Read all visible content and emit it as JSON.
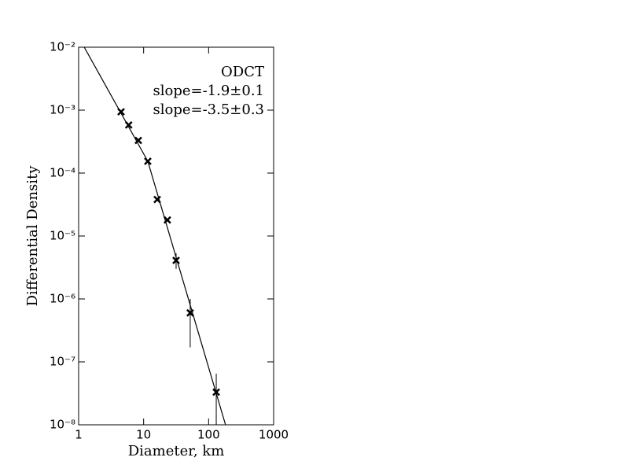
{
  "chart_data": {
    "type": "scatter",
    "xlabel": "Diameter, km",
    "ylabel": "Differential Density",
    "xscale": "log",
    "yscale": "log",
    "xlim": [
      1,
      1000
    ],
    "ylim": [
      1e-08,
      0.01
    ],
    "xticks": [
      1,
      10,
      100,
      1000
    ],
    "yticks": [
      {
        "value": 1e-08,
        "label": "10⁻⁸"
      },
      {
        "value": 1e-07,
        "label": "10⁻⁷"
      },
      {
        "value": 1e-06,
        "label": "10⁻⁶"
      },
      {
        "value": 1e-05,
        "label": "10⁻⁵"
      },
      {
        "value": 0.0001,
        "label": "10⁻⁴"
      },
      {
        "value": 0.001,
        "label": "10⁻³"
      },
      {
        "value": 0.01,
        "label": "10⁻²"
      }
    ],
    "series": [
      {
        "name": "ODCT",
        "kind": "points",
        "color": "#000000",
        "x": [
          4.5,
          5.9,
          8.3,
          11.6,
          16.2,
          23.2,
          31.6,
          52.1,
          131
        ],
        "values": [
          0.00094,
          0.00058,
          0.00033,
          0.000154,
          3.8e-05,
          1.8e-05,
          4.1e-06,
          6e-07,
          3.3e-08
        ],
        "lower": [
          null,
          null,
          null,
          null,
          null,
          null,
          3e-06,
          1.7e-07,
          5e-09
        ],
        "upper": [
          null,
          null,
          null,
          null,
          null,
          null,
          5.3e-06,
          1e-06,
          6.5e-08
        ]
      },
      {
        "name": "slope=-1.9±0.1",
        "kind": "line",
        "color": "#000000",
        "x": [
          1.22,
          11.6
        ],
        "values": [
          0.01,
          0.000154
        ]
      },
      {
        "name": "slope=-3.5±0.3",
        "kind": "line",
        "color": "#000000",
        "x": [
          11.6,
          182
        ],
        "values": [
          0.000154,
          1e-08
        ]
      }
    ]
  }
}
